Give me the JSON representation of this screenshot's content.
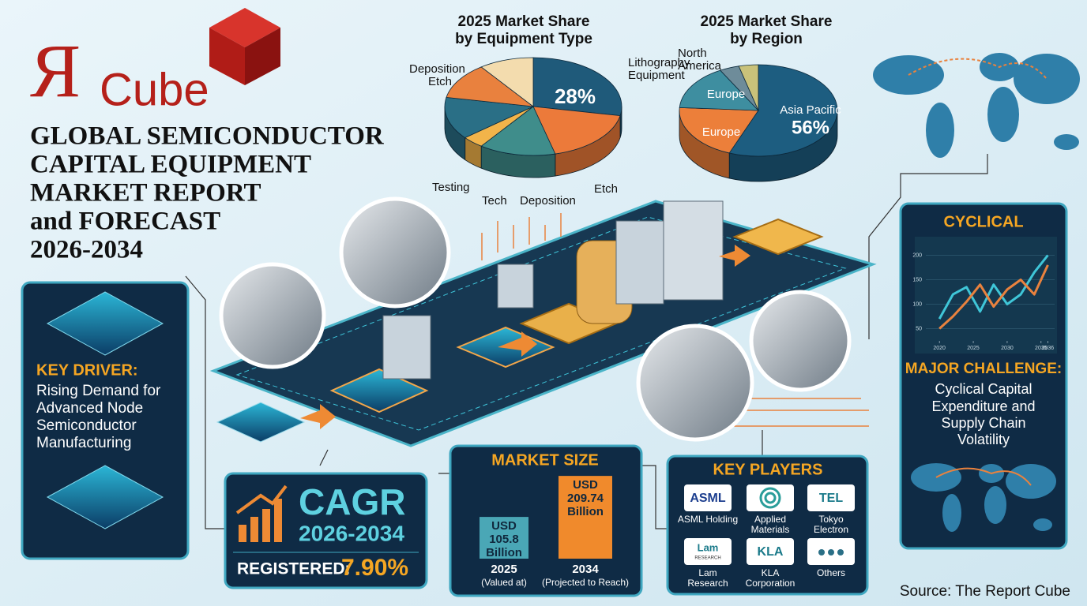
{
  "logo": {
    "mark": "Я",
    "text": "Cube"
  },
  "title_lines": [
    "GLOBAL SEMICONDUCTOR",
    "CAPITAL EQUIPMENT",
    "MARKET REPORT",
    "and FORECAST",
    "2026-2034"
  ],
  "chart_data": [
    {
      "type": "pie",
      "title_lines": [
        "2025 Market Share",
        "by Equipment Type"
      ],
      "categories": [
        "Lithography Equipment",
        "Etch",
        "Deposition",
        "Tech",
        "Testing",
        "Etch",
        "Deposition"
      ],
      "values": [
        28,
        18,
        14,
        4,
        14,
        12,
        10
      ],
      "value_labels": [
        "28%",
        null,
        null,
        null,
        null,
        null,
        null
      ],
      "colors": [
        "#1f5a7a",
        "#ec7a3a",
        "#3f8d8b",
        "#f2b44a",
        "#2a6f86",
        "#e9813e",
        "#f3dcae"
      ]
    },
    {
      "type": "pie",
      "title_lines": [
        "2025 Market Share",
        "by Region"
      ],
      "categories": [
        "Asia Pacific",
        "Europe",
        "Europe",
        "North America",
        null
      ],
      "values": [
        56,
        20,
        16,
        4,
        4
      ],
      "value_labels": [
        "56%",
        null,
        null,
        null,
        null
      ],
      "colors": [
        "#1d5d80",
        "#ec7f3a",
        "#3e8ea0",
        "#6e8c9a",
        "#c9c27a"
      ]
    },
    {
      "type": "bar",
      "title": "MARKET SIZE",
      "categories": [
        "2025",
        "2034"
      ],
      "category_notes": [
        "(Valued at)",
        "(Projected to Reach)"
      ],
      "values": [
        105.8,
        209.74
      ],
      "value_labels": [
        "USD 105.8 Billion",
        "USD 209.74 Billion"
      ],
      "colors": [
        "#4aa7b6",
        "#f08a2c"
      ]
    },
    {
      "type": "line",
      "title": "CYCLICAL",
      "series": [
        {
          "color": "#3fc6d8",
          "x": [
            2020,
            2022,
            2024,
            2026,
            2028,
            2030,
            2032,
            2034,
            2036
          ],
          "values": [
            70,
            120,
            135,
            85,
            140,
            100,
            120,
            165,
            200
          ]
        },
        {
          "color": "#e9823e",
          "x": [
            2020,
            2022,
            2024,
            2026,
            2028,
            2030,
            2032,
            2034,
            2036
          ],
          "values": [
            50,
            75,
            105,
            140,
            95,
            130,
            150,
            120,
            180
          ]
        }
      ],
      "xlim": [
        2018,
        2037
      ],
      "xticks": [
        2020,
        2025,
        2030,
        2035,
        2036
      ],
      "ylim": [
        25,
        225
      ],
      "yticks": [
        50,
        100,
        150,
        200
      ],
      "grid": true
    }
  ],
  "key_driver": {
    "heading": "KEY DRIVER:",
    "lines": [
      "Rising Demand for",
      "Advanced Node",
      "Semiconductor",
      "Manufacturing"
    ]
  },
  "cagr": {
    "heading": "CAGR",
    "period": "2026-2034",
    "registered_label": "REGISTERED:",
    "registered_value": "7.90%"
  },
  "key_players": {
    "title": "KEY PLAYERS",
    "players": [
      {
        "logo_text": "ASML",
        "name_lines": [
          "ASML Holding"
        ]
      },
      {
        "name_lines": [
          "Applied",
          "Materials"
        ]
      },
      {
        "logo_text": "TEL",
        "name_lines": [
          "Tokyo",
          "Electron"
        ]
      },
      {
        "logo_text": "Lam",
        "logo_sub": "RESEARCH",
        "name_lines": [
          "Lam",
          "Research"
        ]
      },
      {
        "logo_text": "KLA",
        "name_lines": [
          "KLA",
          "Corporation"
        ]
      },
      {
        "name_lines": [
          "Others"
        ]
      }
    ]
  },
  "challenge": {
    "heading": "MAJOR CHALLENGE:",
    "lines": [
      "Cyclical Capital",
      "Expenditure and",
      "Supply Chain",
      "Volatility"
    ]
  },
  "source": "Source: The Report Cube"
}
